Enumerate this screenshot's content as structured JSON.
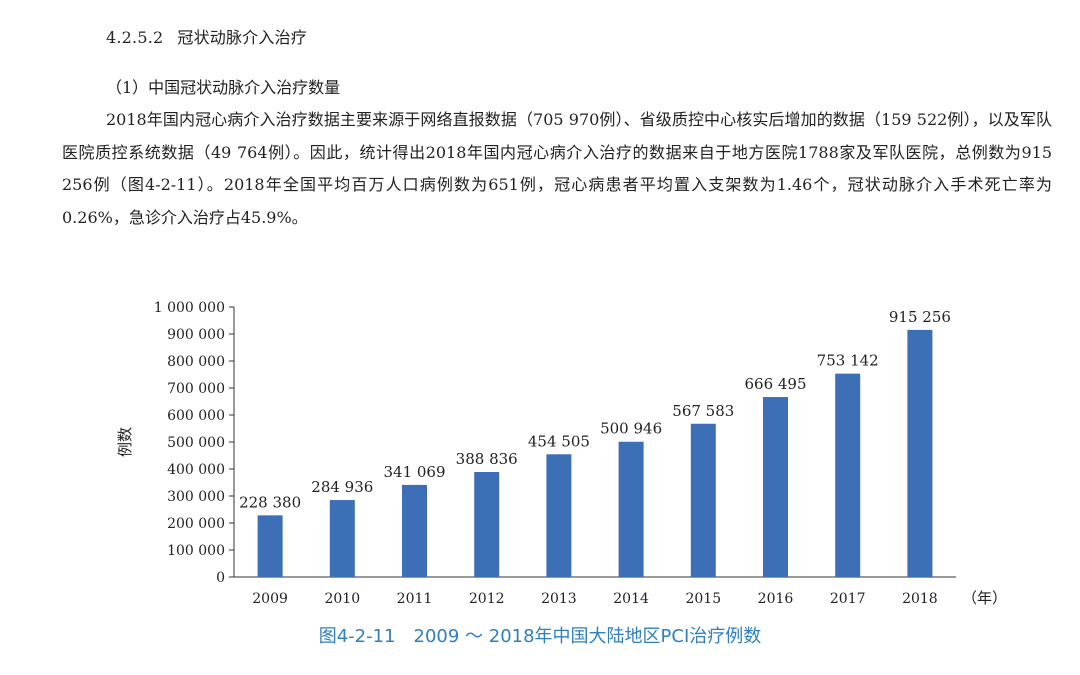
{
  "section": {
    "number": "4.2.5.2",
    "title": "冠状动脉介入治疗"
  },
  "subheading": "（1）中国冠状动脉介入治疗数量",
  "paragraph": "2018年国内冠心病介入治疗数据主要来源于网络直报数据（705 970例）、省级质控中心核实后增加的数据（159 522例），以及军队医院质控系统数据（49 764例）。因此，统计得出2018年国内冠心病介入治疗的数据来自于地方医院1788家及军队医院，总例数为915 256例（图4-2-11）。2018年全国平均百万人口病例数为651例，冠心病患者平均置入支架数为1.46个，冠状动脉介入手术死亡率为0.26%，急诊介入治疗占45.9%。",
  "caption": "图4-2-11　2009 ～ 2018年中国大陆地区PCI治疗例数",
  "chart_data": {
    "type": "bar",
    "title": "",
    "xlabel": "（年）",
    "ylabel": "例数",
    "categories": [
      "2009",
      "2010",
      "2011",
      "2012",
      "2013",
      "2014",
      "2015",
      "2016",
      "2017",
      "2018"
    ],
    "values": [
      228380,
      284936,
      341069,
      388836,
      454505,
      500946,
      567583,
      666495,
      753142,
      915256
    ],
    "value_labels": [
      "228 380",
      "284 936",
      "341 069",
      "388 836",
      "454 505",
      "500 946",
      "567 583",
      "666 495",
      "753 142",
      "915 256"
    ],
    "ylim": [
      0,
      1000000
    ],
    "yticks": [
      0,
      100000,
      200000,
      300000,
      400000,
      500000,
      600000,
      700000,
      800000,
      900000,
      1000000
    ],
    "ytick_labels": [
      "0",
      "100 000",
      "200 000",
      "300 000",
      "400 000",
      "500 000",
      "600 000",
      "700 000",
      "800 000",
      "900 000",
      "1 000 000"
    ],
    "bar_color": "#3d6fb6",
    "grid": false,
    "legend": "none"
  }
}
